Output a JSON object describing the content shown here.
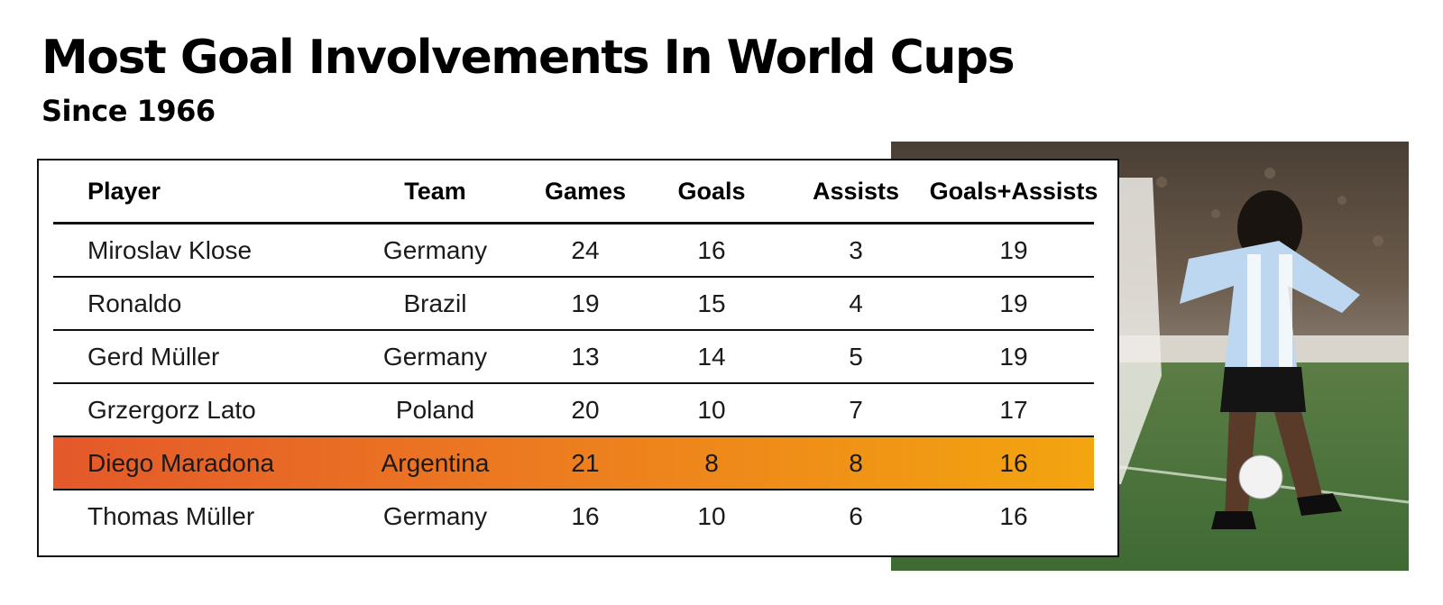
{
  "title": "Most Goal Involvements In World Cups",
  "subtitle": "Since 1966",
  "chart_data": {
    "type": "table",
    "title": "Most Goal Involvements In World Cups",
    "subtitle": "Since 1966",
    "columns": [
      "Player",
      "Team",
      "Games",
      "Goals",
      "Assists",
      "Goals+Assists"
    ],
    "rows": [
      [
        "Miroslav Klose",
        "Germany",
        "24",
        "16",
        "3",
        "19"
      ],
      [
        "Ronaldo",
        "Brazil",
        "19",
        "15",
        "4",
        "19"
      ],
      [
        "Gerd Müller",
        "Germany",
        "13",
        "14",
        "5",
        "19"
      ],
      [
        "Grzergorz Lato",
        "Poland",
        "20",
        "10",
        "7",
        "17"
      ],
      [
        "Diego Maradona",
        "Argentina",
        "21",
        "8",
        "8",
        "16"
      ],
      [
        "Thomas Müller",
        "Germany",
        "16",
        "10",
        "6",
        "16"
      ]
    ],
    "highlighted_row": "Diego Maradona",
    "highlight_colors": [
      "#e4582a",
      "#f3a50f"
    ]
  },
  "photo": {
    "subject": "footballer-photo"
  }
}
